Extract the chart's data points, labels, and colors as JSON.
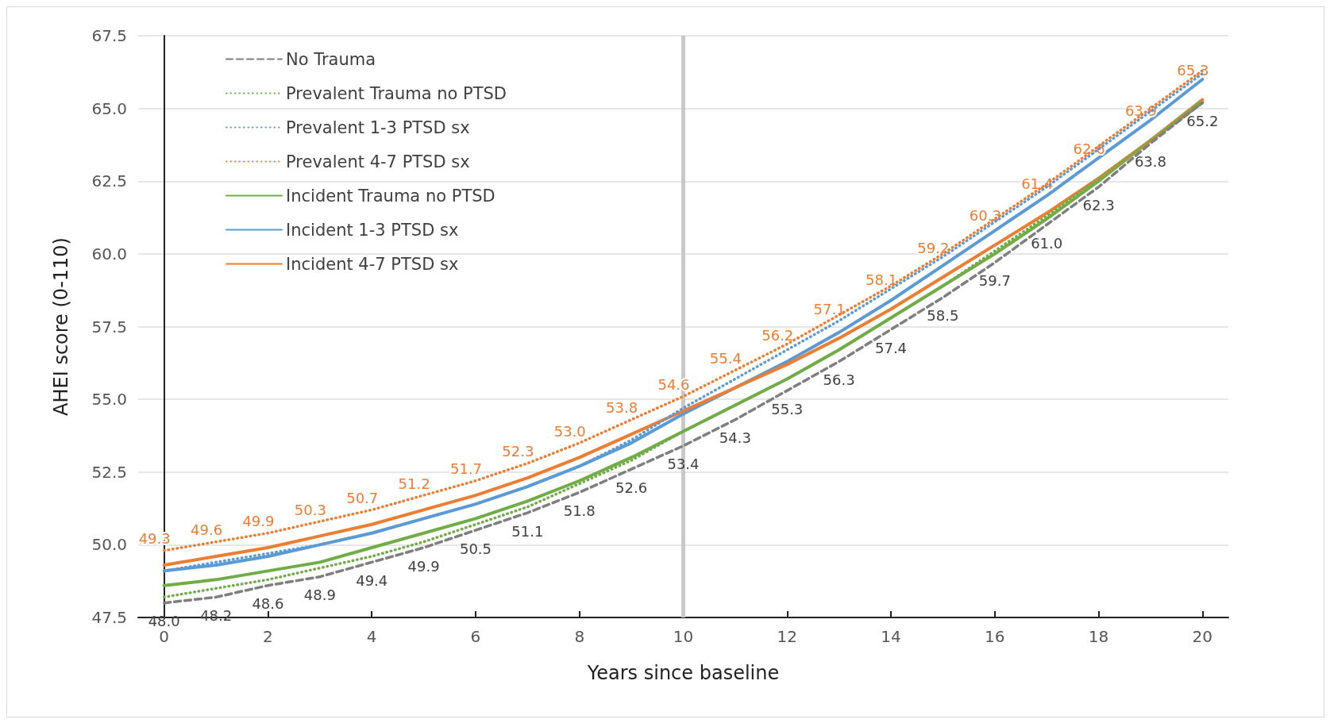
{
  "chart_data": {
    "type": "line",
    "xlabel": "Years since baseline",
    "ylabel": "AHEI score (0-110)",
    "x": [
      0,
      1,
      2,
      3,
      4,
      5,
      6,
      7,
      8,
      9,
      10,
      11,
      12,
      13,
      14,
      15,
      16,
      17,
      18,
      19,
      20
    ],
    "xlim": [
      -0.5,
      20.5
    ],
    "xticks": [
      0,
      2,
      4,
      6,
      8,
      10,
      12,
      14,
      16,
      18,
      20
    ],
    "ylim": [
      47.5,
      67.5
    ],
    "yticks": [
      {
        "value": 47.5,
        "label": "47.5"
      },
      {
        "value": 50,
        "label": "50.0"
      },
      {
        "value": 52.5,
        "label": "52.5"
      },
      {
        "value": 55,
        "label": "55.0"
      },
      {
        "value": 57.5,
        "label": "57.5"
      },
      {
        "value": 60,
        "label": "60.0"
      },
      {
        "value": 62.5,
        "label": "62.5"
      },
      {
        "value": 65,
        "label": "65.0"
      },
      {
        "value": 67.5,
        "label": "67.5"
      }
    ],
    "grid": "y",
    "legend": "top left",
    "marker": "none",
    "ref_lines": [
      {
        "axis": "x",
        "value": 10,
        "color": "#c8c8c8"
      }
    ],
    "series": [
      {
        "name": "No Trauma",
        "color": "#7f7f7f",
        "line_style": "dashed",
        "values": [
          48.0,
          48.2,
          48.6,
          48.9,
          49.4,
          49.9,
          50.5,
          51.1,
          51.8,
          52.6,
          53.4,
          54.3,
          55.3,
          56.3,
          57.4,
          58.5,
          59.7,
          61.0,
          62.3,
          63.8,
          65.2
        ],
        "value_labels": [
          "48.0",
          "48.2",
          "48.6",
          "48.9",
          "49.4",
          "49.9",
          "50.5",
          "51.1",
          "51.8",
          "52.6",
          "53.4",
          "54.3",
          "55.3",
          "56.3",
          "57.4",
          "58.5",
          "59.7",
          "61.0",
          "62.3",
          "63.8",
          "65.2"
        ]
      },
      {
        "name": "Prevalent Trauma no PTSD",
        "color": "#70ad47",
        "line_style": "dotted",
        "values": [
          48.2,
          48.5,
          48.8,
          49.2,
          49.6,
          50.1,
          50.7,
          51.3,
          52.1,
          52.9,
          53.9,
          54.8,
          55.7,
          56.7,
          57.8,
          58.9,
          60.1,
          61.3,
          62.6,
          63.9,
          65.3
        ]
      },
      {
        "name": "Prevalent 1-3 PTSD sx",
        "color": "#5b9bd5",
        "line_style": "dotted",
        "values": [
          49.1,
          49.4,
          49.7,
          50.0,
          50.4,
          50.9,
          51.4,
          52.0,
          52.7,
          53.6,
          54.7,
          55.7,
          56.7,
          57.7,
          58.8,
          59.9,
          61.1,
          62.3,
          63.6,
          64.9,
          66.2
        ]
      },
      {
        "name": "Prevalent 4-7 PTSD sx",
        "color": "#ed7d31",
        "line_style": "dotted",
        "values": [
          49.8,
          50.1,
          50.4,
          50.8,
          51.2,
          51.7,
          52.2,
          52.8,
          53.5,
          54.3,
          55.1,
          56.0,
          56.9,
          57.9,
          58.9,
          60.0,
          61.2,
          62.4,
          63.7,
          65.0,
          66.3
        ]
      },
      {
        "name": "Incident Trauma no PTSD",
        "color": "#70ad47",
        "line_style": "solid",
        "values": [
          48.6,
          48.8,
          49.1,
          49.4,
          49.9,
          50.4,
          50.9,
          51.5,
          52.2,
          53.0,
          53.9,
          54.8,
          55.7,
          56.7,
          57.8,
          58.9,
          60.0,
          61.2,
          62.5,
          63.9,
          65.2
        ]
      },
      {
        "name": "Incident 1-3 PTSD sx",
        "color": "#5b9bd5",
        "line_style": "solid",
        "values": [
          49.1,
          49.3,
          49.6,
          50.0,
          50.4,
          50.9,
          51.4,
          52.0,
          52.7,
          53.5,
          54.5,
          55.4,
          56.3,
          57.3,
          58.4,
          59.6,
          60.8,
          62.0,
          63.3,
          64.6,
          66.0
        ]
      },
      {
        "name": "Incident 4-7 PTSD sx",
        "color": "#ed7d31",
        "line_style": "solid",
        "values": [
          49.3,
          49.6,
          49.9,
          50.3,
          50.7,
          51.2,
          51.7,
          52.3,
          53.0,
          53.8,
          54.6,
          55.4,
          56.2,
          57.1,
          58.1,
          59.2,
          60.3,
          61.4,
          62.6,
          63.9,
          65.3
        ],
        "value_labels": [
          "49.3",
          "49.6",
          "49.9",
          "50.3",
          "50.7",
          "51.2",
          "51.7",
          "52.3",
          "53.0",
          "53.8",
          "54.6",
          "55.4",
          "56.2",
          "57.1",
          "58.1",
          "59.2",
          "60.3",
          "61.4",
          "62.6",
          "63.9",
          "65.3"
        ]
      }
    ]
  }
}
